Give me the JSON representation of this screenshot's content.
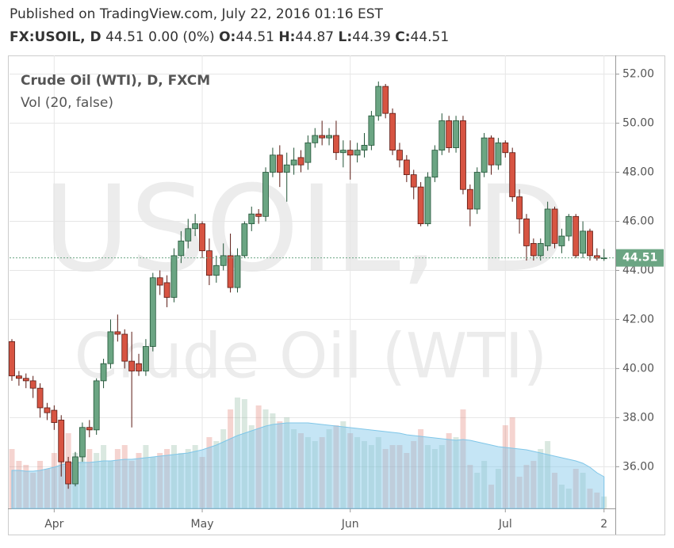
{
  "chart_data": {
    "type": "candlestick",
    "header": {
      "published": "Published on TradingView.com, July 22, 2016 01:16 EST",
      "symbol": "FX:USOIL, D",
      "change": "0.00 (0%)",
      "open_label": "O:",
      "high_label": "H:",
      "low_label": "L:",
      "close_label": "C:"
    },
    "title": "Crude Oil (WTI), D, FXCM",
    "volume_label": "Vol (20, false)",
    "watermark": [
      "USOIL, D",
      "Crude Oil (WTI)"
    ],
    "categories": [
      null,
      null,
      null,
      null,
      null,
      null,
      "Apr",
      null,
      null,
      null,
      null,
      null,
      null,
      null,
      null,
      null,
      null,
      null,
      null,
      null,
      null,
      null,
      null,
      null,
      null,
      null,
      null,
      "May",
      null,
      null,
      null,
      null,
      null,
      null,
      null,
      null,
      null,
      null,
      null,
      null,
      null,
      null,
      null,
      null,
      null,
      null,
      null,
      null,
      "Jun",
      null,
      null,
      null,
      null,
      null,
      null,
      null,
      null,
      null,
      null,
      null,
      null,
      null,
      null,
      null,
      null,
      null,
      null,
      null,
      null,
      null,
      "Jul",
      null,
      null,
      null,
      null,
      null,
      null,
      null,
      null,
      null,
      null,
      null,
      null,
      null,
      "2"
    ],
    "open": [
      41.1,
      39.7,
      39.6,
      39.5,
      39.2,
      38.4,
      38.3,
      37.9,
      36.2,
      35.3,
      36.4,
      37.6,
      37.5,
      39.5,
      40.2,
      41.5,
      41.4,
      40.3,
      40.2,
      39.9,
      40.9,
      43.7,
      43.5,
      42.9,
      44.6,
      45.2,
      45.7,
      45.9,
      44.8,
      43.8,
      44.2,
      44.6,
      43.3,
      44.6,
      45.9,
      46.3,
      46.2,
      48.0,
      48.7,
      48.0,
      48.3,
      48.6,
      48.4,
      49.2,
      49.5,
      49.4,
      49.5,
      48.8,
      48.9,
      48.7,
      48.9,
      49.1,
      50.3,
      51.5,
      50.4,
      48.9,
      48.5,
      47.9,
      47.4,
      45.9,
      47.8,
      48.9,
      50.1,
      49.0,
      50.1,
      47.3,
      46.5,
      48.0,
      49.4,
      48.3,
      49.2,
      48.8,
      47.0,
      46.1,
      45.1,
      44.6,
      45.0,
      46.5,
      45.0,
      45.4,
      46.2,
      44.7,
      45.6,
      44.6,
      44.51
    ],
    "high": [
      41.2,
      39.9,
      39.8,
      39.7,
      39.4,
      38.6,
      38.5,
      38.1,
      36.4,
      36.6,
      37.8,
      37.9,
      39.6,
      40.4,
      42.0,
      42.2,
      41.6,
      41.5,
      40.6,
      41.2,
      43.9,
      44.0,
      43.8,
      44.9,
      45.6,
      46.1,
      46.3,
      46.0,
      45.3,
      44.6,
      45.1,
      45.5,
      44.9,
      46.0,
      46.6,
      46.5,
      48.2,
      49.0,
      49.1,
      48.8,
      49.0,
      48.9,
      49.5,
      49.8,
      50.1,
      49.8,
      50.1,
      49.3,
      49.3,
      49.2,
      49.6,
      50.5,
      51.7,
      51.6,
      50.6,
      49.2,
      48.7,
      48.1,
      47.6,
      48.0,
      49.1,
      50.4,
      50.3,
      50.3,
      50.3,
      47.5,
      48.2,
      49.6,
      49.5,
      49.4,
      49.3,
      49.0,
      47.3,
      46.3,
      45.3,
      45.3,
      46.8,
      46.6,
      45.7,
      46.3,
      46.3,
      46.0,
      45.7,
      44.9,
      44.87
    ],
    "low": [
      39.5,
      39.3,
      39.2,
      38.8,
      38.0,
      37.9,
      37.5,
      35.6,
      35.1,
      35.2,
      36.2,
      37.2,
      37.3,
      39.2,
      40.0,
      41.1,
      40.0,
      37.6,
      39.7,
      39.7,
      40.7,
      43.0,
      42.5,
      42.7,
      44.3,
      44.9,
      45.4,
      44.5,
      43.4,
      43.5,
      44.0,
      43.1,
      43.1,
      44.5,
      45.6,
      45.9,
      46.0,
      47.8,
      47.4,
      46.8,
      47.9,
      48.0,
      48.1,
      49.0,
      49.1,
      49.1,
      48.5,
      48.2,
      47.7,
      48.4,
      48.6,
      48.9,
      50.1,
      50.2,
      48.7,
      48.2,
      47.6,
      46.9,
      45.8,
      45.8,
      47.6,
      48.7,
      48.8,
      48.8,
      47.1,
      45.8,
      46.3,
      47.8,
      47.9,
      48.1,
      48.6,
      46.8,
      45.5,
      44.4,
      44.4,
      44.4,
      44.8,
      44.9,
      44.7,
      45.2,
      44.5,
      44.5,
      44.4,
      44.4,
      44.39
    ],
    "close": [
      39.7,
      39.6,
      39.5,
      39.2,
      38.4,
      38.2,
      37.8,
      36.2,
      35.3,
      36.4,
      37.6,
      37.5,
      39.5,
      40.2,
      41.5,
      41.4,
      40.3,
      39.9,
      39.9,
      40.9,
      43.7,
      43.4,
      42.9,
      44.6,
      45.2,
      45.7,
      45.9,
      44.8,
      43.8,
      44.2,
      44.6,
      43.3,
      44.6,
      45.9,
      46.3,
      46.2,
      48.0,
      48.7,
      48.0,
      48.3,
      48.5,
      48.3,
      49.2,
      49.5,
      49.4,
      49.5,
      48.8,
      48.9,
      48.7,
      48.9,
      49.1,
      50.3,
      51.5,
      50.4,
      48.9,
      48.5,
      47.9,
      47.4,
      45.9,
      47.8,
      48.9,
      50.1,
      49.0,
      50.1,
      47.3,
      46.5,
      48.0,
      49.4,
      48.3,
      49.2,
      48.8,
      47.0,
      46.1,
      45.0,
      44.6,
      45.1,
      46.5,
      45.1,
      45.4,
      46.2,
      44.6,
      45.6,
      44.6,
      44.5,
      44.51
    ],
    "volume": [
      75,
      60,
      55,
      45,
      60,
      50,
      70,
      105,
      95,
      70,
      65,
      75,
      70,
      80,
      60,
      75,
      80,
      60,
      70,
      80,
      65,
      70,
      75,
      80,
      70,
      75,
      80,
      65,
      90,
      85,
      100,
      125,
      140,
      138,
      105,
      130,
      125,
      120,
      110,
      115,
      100,
      95,
      90,
      85,
      90,
      100,
      105,
      110,
      95,
      90,
      85,
      80,
      90,
      75,
      80,
      80,
      70,
      85,
      100,
      80,
      75,
      80,
      95,
      90,
      125,
      55,
      45,
      60,
      30,
      50,
      105,
      115,
      40,
      55,
      60,
      75,
      85,
      45,
      30,
      25,
      50,
      45,
      25,
      20,
      15
    ],
    "volume_ma": [
      48,
      48,
      47,
      47,
      48,
      50,
      52,
      55,
      57,
      58,
      58,
      58,
      59,
      60,
      60,
      61,
      62,
      62,
      63,
      64,
      65,
      66,
      67,
      68,
      69,
      70,
      72,
      74,
      77,
      80,
      84,
      88,
      92,
      95,
      98,
      101,
      104,
      106,
      107,
      108,
      108,
      108,
      108,
      107,
      106,
      105,
      104,
      103,
      102,
      101,
      100,
      99,
      98,
      97,
      96,
      95,
      93,
      92,
      91,
      90,
      89,
      88,
      87,
      86,
      87,
      86,
      84,
      82,
      80,
      78,
      77,
      76,
      75,
      74,
      72,
      70,
      68,
      66,
      64,
      62,
      60,
      57,
      52,
      45,
      40
    ],
    "up_color": "#6ba583",
    "down_color": "#d75442",
    "ma_color": "#7fc6e8",
    "ylim": [
      34.3,
      52.6
    ],
    "yticks": [
      {
        "value": 36,
        "label": "36.00"
      },
      {
        "value": 38,
        "label": "38.00"
      },
      {
        "value": 40,
        "label": "40.00"
      },
      {
        "value": 42,
        "label": "42.00"
      },
      {
        "value": 44,
        "label": "44.00"
      },
      {
        "value": 46,
        "label": "46.00"
      },
      {
        "value": 48,
        "label": "48.00"
      },
      {
        "value": 50,
        "label": "50.00"
      },
      {
        "value": 52,
        "label": "52.00"
      }
    ],
    "grid": true
  }
}
